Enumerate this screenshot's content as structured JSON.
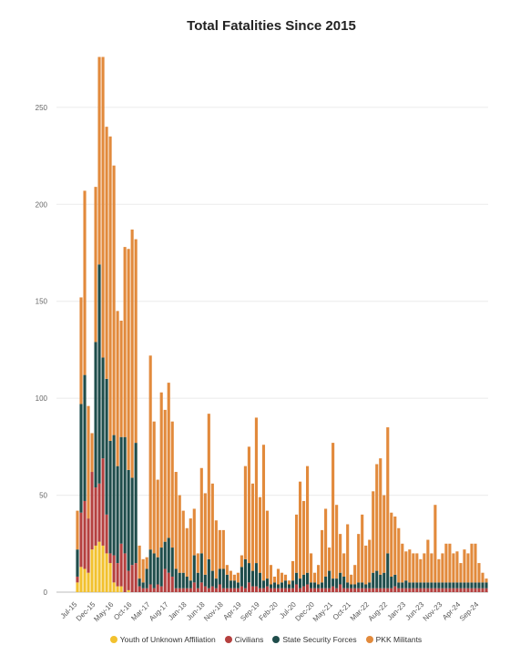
{
  "chart_data": {
    "type": "bar",
    "stacked": true,
    "title": "Total Fatalities Since 2015",
    "xlabel": "",
    "ylabel": "",
    "ylim": [
      0,
      280
    ],
    "yticks": [
      0,
      50,
      100,
      150,
      200,
      250
    ],
    "grid": "horizontal",
    "legend_position": "bottom",
    "x_tick_labels": [
      "Jul-15",
      "Dec-15",
      "May-16",
      "Oct-16",
      "Mar-17",
      "Aug-17",
      "Jan-18",
      "Jun-18",
      "Nov-18",
      "Apr-19",
      "Sep-19",
      "Feb-20",
      "Jul-20",
      "Dec-20",
      "May-21",
      "Oct-21",
      "Mar-22",
      "Aug-22",
      "Jan-23",
      "Jun-23",
      "Nov-23",
      "Apr-24",
      "Sep-24"
    ],
    "categories": [
      "Jul-15",
      "Aug-15",
      "Sep-15",
      "Oct-15",
      "Nov-15",
      "Dec-15",
      "Jan-16",
      "Feb-16",
      "Mar-16",
      "Apr-16",
      "May-16",
      "Jun-16",
      "Jul-16",
      "Aug-16",
      "Sep-16",
      "Oct-16",
      "Nov-16",
      "Dec-16",
      "Jan-17",
      "Feb-17",
      "Mar-17",
      "Apr-17",
      "May-17",
      "Jun-17",
      "Jul-17",
      "Aug-17",
      "Sep-17",
      "Oct-17",
      "Nov-17",
      "Dec-17",
      "Jan-18",
      "Feb-18",
      "Mar-18",
      "Apr-18",
      "May-18",
      "Jun-18",
      "Jul-18",
      "Aug-18",
      "Sep-18",
      "Oct-18",
      "Nov-18",
      "Dec-18",
      "Jan-19",
      "Feb-19",
      "Mar-19",
      "Apr-19",
      "May-19",
      "Jun-19",
      "Jul-19",
      "Aug-19",
      "Sep-19",
      "Oct-19",
      "Nov-19",
      "Dec-19",
      "Jan-20",
      "Feb-20",
      "Mar-20",
      "Apr-20",
      "May-20",
      "Jun-20",
      "Jul-20",
      "Aug-20",
      "Sep-20",
      "Oct-20",
      "Nov-20",
      "Dec-20",
      "Jan-21",
      "Feb-21",
      "Mar-21",
      "Apr-21",
      "May-21",
      "Jun-21",
      "Jul-21",
      "Aug-21",
      "Sep-21",
      "Oct-21",
      "Nov-21",
      "Dec-21",
      "Jan-22",
      "Feb-22",
      "Mar-22",
      "Apr-22",
      "May-22",
      "Jun-22",
      "Jul-22",
      "Aug-22",
      "Sep-22",
      "Oct-22",
      "Nov-22",
      "Dec-22",
      "Jan-23",
      "Feb-23",
      "Mar-23",
      "Apr-23",
      "May-23",
      "Jun-23",
      "Jul-23",
      "Aug-23",
      "Sep-23",
      "Oct-23",
      "Nov-23",
      "Dec-23",
      "Jan-24",
      "Feb-24",
      "Mar-24",
      "Apr-24",
      "May-24",
      "Jun-24",
      "Jul-24",
      "Aug-24",
      "Sep-24",
      "Oct-24",
      "Nov-24"
    ],
    "series": [
      {
        "name": "Youth of Unknown Affiliation",
        "color": "#f2c12e",
        "values": [
          5,
          13,
          12,
          10,
          22,
          24,
          26,
          24,
          20,
          15,
          5,
          3,
          3,
          0,
          1,
          0,
          0,
          0,
          0,
          0,
          0,
          0,
          0,
          0,
          0,
          0,
          0,
          0,
          0,
          0,
          0,
          0,
          0,
          0,
          0,
          0,
          0,
          0,
          0,
          0,
          0,
          0,
          0,
          0,
          0,
          0,
          0,
          0,
          0,
          0,
          0,
          0,
          0,
          0,
          0,
          0,
          0,
          0,
          0,
          0,
          0,
          0,
          0,
          0,
          0,
          0,
          0,
          0,
          0,
          0,
          0,
          0,
          0,
          0,
          0,
          0,
          0,
          0,
          0,
          0,
          0,
          0,
          0,
          0,
          0,
          0,
          0,
          0,
          0,
          0,
          0,
          0,
          0,
          0,
          0,
          0,
          0,
          0,
          0,
          0,
          0,
          0,
          0,
          0,
          0,
          0,
          0,
          0,
          0,
          0,
          0,
          0,
          0
        ]
      },
      {
        "name": "Civilians",
        "color": "#b5403f",
        "values": [
          3,
          28,
          35,
          28,
          40,
          30,
          30,
          45,
          20,
          5,
          14,
          12,
          22,
          20,
          10,
          14,
          15,
          3,
          2,
          2,
          4,
          2,
          4,
          3,
          12,
          10,
          8,
          2,
          2,
          2,
          2,
          2,
          5,
          2,
          5,
          3,
          2,
          3,
          2,
          4,
          2,
          2,
          2,
          2,
          2,
          3,
          2,
          5,
          3,
          3,
          2,
          2,
          3,
          2,
          2,
          2,
          2,
          2,
          2,
          2,
          4,
          2,
          3,
          4,
          2,
          2,
          2,
          2,
          2,
          2,
          3,
          2,
          4,
          2,
          2,
          2,
          2,
          2,
          2,
          2,
          2,
          2,
          2,
          2,
          2,
          2,
          2,
          3,
          2,
          2,
          2,
          2,
          2,
          2,
          2,
          2,
          2,
          2,
          2,
          2,
          2,
          2,
          2,
          2,
          2,
          2,
          2,
          2,
          2,
          2,
          2,
          2,
          2
        ]
      },
      {
        "name": "State Security Forces",
        "color": "#1f4d4b",
        "values": [
          14,
          56,
          65,
          0,
          0,
          75,
          113,
          52,
          70,
          58,
          62,
          50,
          55,
          60,
          52,
          45,
          62,
          4,
          3,
          10,
          18,
          18,
          14,
          20,
          14,
          18,
          15,
          10,
          8,
          8,
          6,
          4,
          14,
          8,
          15,
          6,
          15,
          8,
          5,
          8,
          10,
          7,
          4,
          4,
          3,
          10,
          15,
          10,
          8,
          12,
          8,
          4,
          4,
          2,
          3,
          2,
          3,
          4,
          2,
          4,
          6,
          5,
          6,
          6,
          3,
          3,
          2,
          3,
          6,
          9,
          4,
          5,
          6,
          6,
          3,
          2,
          2,
          3,
          3,
          2,
          3,
          8,
          9,
          7,
          8,
          18,
          6,
          6,
          3,
          3,
          4,
          3,
          3,
          3,
          3,
          3,
          3,
          3,
          3,
          3,
          3,
          3,
          3,
          3,
          3,
          3,
          3,
          3,
          3,
          3,
          3,
          3,
          3
        ]
      },
      {
        "name": "PKK Militants",
        "color": "#e28a3c",
        "values": [
          20,
          55,
          95,
          58,
          20,
          80,
          107,
          155,
          130,
          157,
          139,
          80,
          60,
          98,
          114,
          128,
          105,
          17,
          12,
          6,
          100,
          68,
          40,
          80,
          68,
          80,
          65,
          50,
          40,
          32,
          25,
          32,
          24,
          10,
          44,
          42,
          75,
          45,
          30,
          20,
          20,
          5,
          5,
          3,
          5,
          6,
          48,
          60,
          45,
          75,
          39,
          70,
          35,
          10,
          3,
          8,
          5,
          3,
          2,
          10,
          30,
          50,
          38,
          55,
          15,
          5,
          10,
          27,
          35,
          12,
          70,
          38,
          20,
          12,
          30,
          5,
          10,
          25,
          35,
          20,
          22,
          42,
          55,
          60,
          40,
          65,
          33,
          30,
          28,
          20,
          15,
          17,
          15,
          15,
          12,
          15,
          22,
          15,
          40,
          12,
          15,
          20,
          20,
          15,
          16,
          10,
          17,
          15,
          20,
          20,
          10,
          5,
          2
        ]
      }
    ]
  }
}
